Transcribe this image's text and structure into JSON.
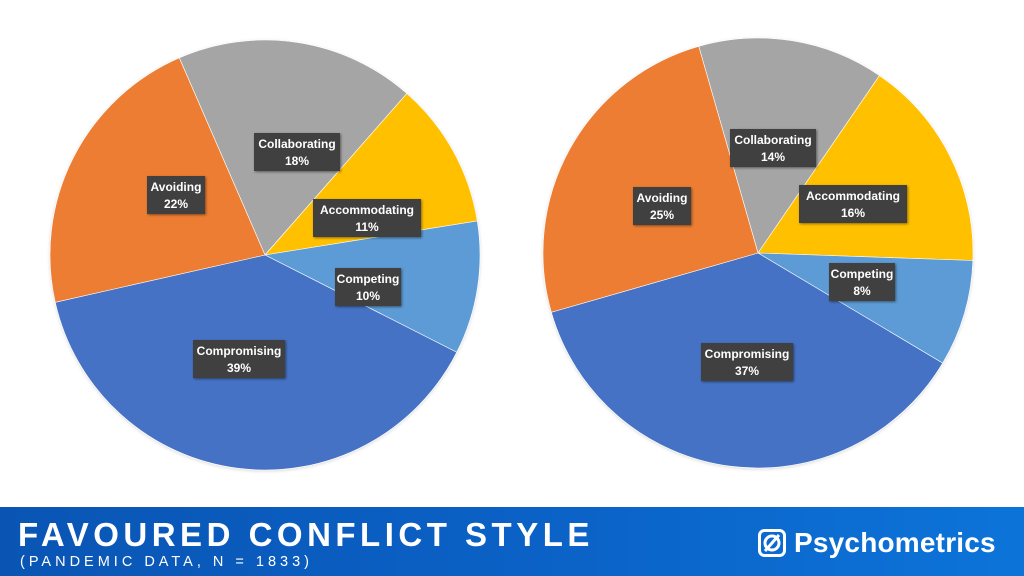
{
  "chart_data": [
    {
      "type": "pie",
      "labels": [
        "Collaborating",
        "Accommodating",
        "Competing",
        "Compromising",
        "Avoiding"
      ],
      "values": [
        18,
        11,
        10,
        39,
        22
      ],
      "value_labels": [
        "18%",
        "11%",
        "10%",
        "39%",
        "22%"
      ],
      "colors": [
        "#a5a5a5",
        "#ffc000",
        "#5b9bd5",
        "#4472c4",
        "#ed7d31"
      ]
    },
    {
      "type": "pie",
      "labels": [
        "Collaborating",
        "Accommodating",
        "Competing",
        "Compromising",
        "Avoiding"
      ],
      "values": [
        14,
        16,
        8,
        37,
        25
      ],
      "value_labels": [
        "14%",
        "16%",
        "8%",
        "37%",
        "25%"
      ],
      "colors": [
        "#a5a5a5",
        "#ffc000",
        "#5b9bd5",
        "#4472c4",
        "#ed7d31"
      ]
    }
  ],
  "footer": {
    "title": "FAVOURED CONFLICT STYLE",
    "subtitle": "(PANDEMIC DATA, N = 1833)",
    "brand": "Psychometrics",
    "brand_icon": "circle-slash-logo-icon"
  }
}
